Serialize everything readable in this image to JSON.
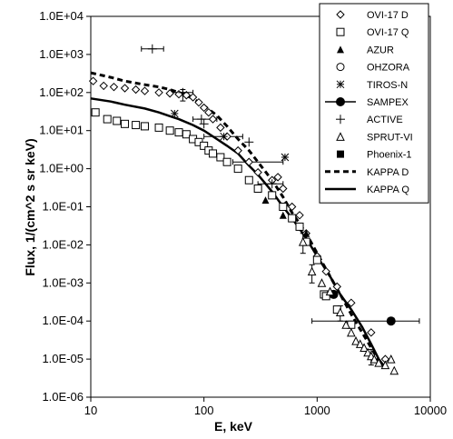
{
  "chart_data": {
    "type": "scatter",
    "x_scale": "log",
    "y_scale": "log",
    "xlim": [
      10,
      10000
    ],
    "ylim": [
      1e-06,
      10000.0
    ],
    "xlabel": "E, keV",
    "ylabel": "Flux, 1/(cm^2 s sr keV)",
    "x_ticks": [
      "10",
      "100",
      "1000",
      "10000"
    ],
    "y_ticks": [
      "1.0E-06",
      "1.0E-05",
      "1.0E-04",
      "1.0E-03",
      "1.0E-02",
      "1.0E-01",
      "1.0E+00",
      "1.0E+01",
      "1.0E+02",
      "1.0E+03",
      "1.0E+04"
    ],
    "grid": false,
    "legend_position": "top-right",
    "series": [
      {
        "name": "OVI-17 D",
        "marker": "diamond-open",
        "points": [
          [
            10.5,
            200
          ],
          [
            13,
            150
          ],
          [
            16,
            140
          ],
          [
            20,
            130
          ],
          [
            25,
            120
          ],
          [
            30,
            110
          ],
          [
            40,
            100
          ],
          [
            50,
            95
          ],
          [
            60,
            90
          ],
          [
            70,
            85
          ],
          [
            80,
            75
          ],
          [
            90,
            55
          ],
          [
            100,
            40
          ],
          [
            110,
            30
          ],
          [
            120,
            20
          ],
          [
            140,
            12
          ],
          [
            160,
            7
          ],
          [
            200,
            3
          ],
          [
            250,
            1.5
          ],
          [
            300,
            0.8
          ],
          [
            400,
            0.5
          ],
          [
            450,
            0.6
          ],
          [
            500,
            0.3
          ],
          [
            600,
            0.1
          ],
          [
            700,
            0.06
          ],
          [
            800,
            0.02
          ],
          [
            1000,
            0.005
          ],
          [
            1200,
            0.002
          ],
          [
            1500,
            0.0008
          ],
          [
            2000,
            0.0003
          ],
          [
            3000,
            5e-05
          ],
          [
            4000,
            1e-05
          ]
        ]
      },
      {
        "name": "OVI-17 Q",
        "marker": "square-open",
        "points": [
          [
            11,
            30
          ],
          [
            14,
            20
          ],
          [
            17,
            18
          ],
          [
            20,
            15
          ],
          [
            25,
            14
          ],
          [
            30,
            13
          ],
          [
            40,
            12
          ],
          [
            50,
            10
          ],
          [
            60,
            9
          ],
          [
            70,
            8
          ],
          [
            80,
            6
          ],
          [
            90,
            5
          ],
          [
            100,
            4
          ],
          [
            110,
            3
          ],
          [
            120,
            2.5
          ],
          [
            140,
            2
          ],
          [
            160,
            1.5
          ],
          [
            200,
            1
          ],
          [
            250,
            0.5
          ],
          [
            300,
            0.3
          ],
          [
            400,
            0.2
          ],
          [
            500,
            0.1
          ],
          [
            600,
            0.05
          ],
          [
            700,
            0.03
          ],
          [
            800,
            0.012
          ],
          [
            1000,
            0.004
          ],
          [
            1150,
            0.0005
          ],
          [
            1200,
            0.00045
          ],
          [
            1500,
            0.0002
          ],
          [
            2000,
            8e-05
          ]
        ]
      },
      {
        "name": "AZUR",
        "marker": "triangle-filled",
        "points": [
          [
            350,
            0.15
          ],
          [
            500,
            0.06
          ],
          [
            800,
            0.02
          ]
        ]
      },
      {
        "name": "OHZORA",
        "marker": "circle-open",
        "points": []
      },
      {
        "name": "TIROS-N",
        "marker": "star",
        "points": [
          [
            55,
            28
          ],
          [
            150,
            7
          ],
          [
            520,
            2
          ]
        ]
      },
      {
        "name": "SAMPEX",
        "marker": "circle-filled",
        "points": [
          [
            1400,
            0.0005
          ],
          [
            4500,
            0.0001
          ]
        ]
      },
      {
        "name": "ACTIVE",
        "marker": "plus",
        "points": [
          [
            35,
            1400
          ],
          [
            65,
            100
          ],
          [
            95,
            20
          ],
          [
            100,
            15
          ],
          [
            250,
            5
          ],
          [
            400,
            0.4
          ]
        ]
      },
      {
        "name": "SPRUT-VI",
        "marker": "triangle-open",
        "points": [
          [
            750,
            0.012
          ],
          [
            900,
            0.002
          ],
          [
            1100,
            0.001
          ],
          [
            1300,
            0.0006
          ],
          [
            1600,
            0.00017
          ],
          [
            1800,
            8e-05
          ],
          [
            2000,
            5e-05
          ],
          [
            2200,
            3e-05
          ],
          [
            2400,
            2.5e-05
          ],
          [
            2600,
            2e-05
          ],
          [
            2800,
            1.5e-05
          ],
          [
            3000,
            1.2e-05
          ],
          [
            3200,
            1e-05
          ],
          [
            3500,
            8e-06
          ],
          [
            4000,
            7e-06
          ],
          [
            4500,
            1e-05
          ],
          [
            4800,
            5e-06
          ]
        ]
      },
      {
        "name": "Phoenix-1",
        "marker": "square-filled",
        "points": []
      },
      {
        "name": "KAPPA D",
        "line": "dashed",
        "points": [
          [
            10,
            330
          ],
          [
            15,
            250
          ],
          [
            20,
            200
          ],
          [
            30,
            160
          ],
          [
            40,
            140
          ],
          [
            50,
            120
          ],
          [
            60,
            100
          ],
          [
            80,
            70
          ],
          [
            100,
            45
          ],
          [
            130,
            25
          ],
          [
            160,
            13
          ],
          [
            200,
            6
          ],
          [
            250,
            3
          ],
          [
            300,
            1.5
          ],
          [
            400,
            0.5
          ],
          [
            500,
            0.18
          ],
          [
            600,
            0.07
          ],
          [
            800,
            0.02
          ],
          [
            1000,
            0.006
          ],
          [
            1300,
            0.0015
          ],
          [
            1600,
            0.0005
          ],
          [
            2000,
            0.00015
          ],
          [
            2500,
            5e-05
          ],
          [
            3000,
            2e-05
          ],
          [
            3500,
            9e-06
          ]
        ]
      },
      {
        "name": "KAPPA Q",
        "line": "solid",
        "points": [
          [
            10,
            70
          ],
          [
            15,
            58
          ],
          [
            20,
            48
          ],
          [
            30,
            38
          ],
          [
            40,
            30
          ],
          [
            50,
            24
          ],
          [
            60,
            20
          ],
          [
            80,
            14
          ],
          [
            100,
            10
          ],
          [
            130,
            6
          ],
          [
            160,
            4
          ],
          [
            200,
            2.5
          ],
          [
            250,
            1.2
          ],
          [
            300,
            0.7
          ],
          [
            400,
            0.25
          ],
          [
            500,
            0.1
          ],
          [
            600,
            0.05
          ],
          [
            800,
            0.015
          ],
          [
            1000,
            0.005
          ],
          [
            1300,
            0.0015
          ],
          [
            1600,
            0.0005
          ],
          [
            2000,
            0.0002
          ],
          [
            2500,
            7e-05
          ],
          [
            3000,
            2.5e-05
          ],
          [
            3500,
            1e-05
          ],
          [
            4000,
            6e-06
          ]
        ]
      }
    ],
    "error_bars": [
      {
        "x": 35,
        "y": 1400,
        "xlo": 28,
        "xhi": 44
      },
      {
        "x": 65,
        "y": 100,
        "xlo": 50,
        "xhi": 80,
        "ylo": 60,
        "yhi": 120
      },
      {
        "x": 95,
        "y": 20,
        "xlo": 80,
        "xhi": 130
      },
      {
        "x": 150,
        "y": 7,
        "xlo": 100,
        "xhi": 220
      },
      {
        "x": 250,
        "y": 1.5,
        "xlo": 180,
        "xhi": 500
      },
      {
        "x": 400,
        "y": 0.4,
        "xlo": 300,
        "xhi": 500
      },
      {
        "x": 4500,
        "y": 0.0001,
        "xlo": 900,
        "xhi": 8000
      },
      {
        "x": 750,
        "y": 0.012,
        "ylo": 0.006,
        "yhi": 0.02
      },
      {
        "x": 900,
        "y": 0.002,
        "ylo": 0.001,
        "yhi": 0.003
      },
      {
        "x": 1600,
        "y": 0.00017,
        "ylo": 0.0001,
        "yhi": 0.00025
      },
      {
        "x": 3000,
        "y": 1.2e-05,
        "ylo": 7e-06,
        "yhi": 1.8e-05
      }
    ]
  }
}
